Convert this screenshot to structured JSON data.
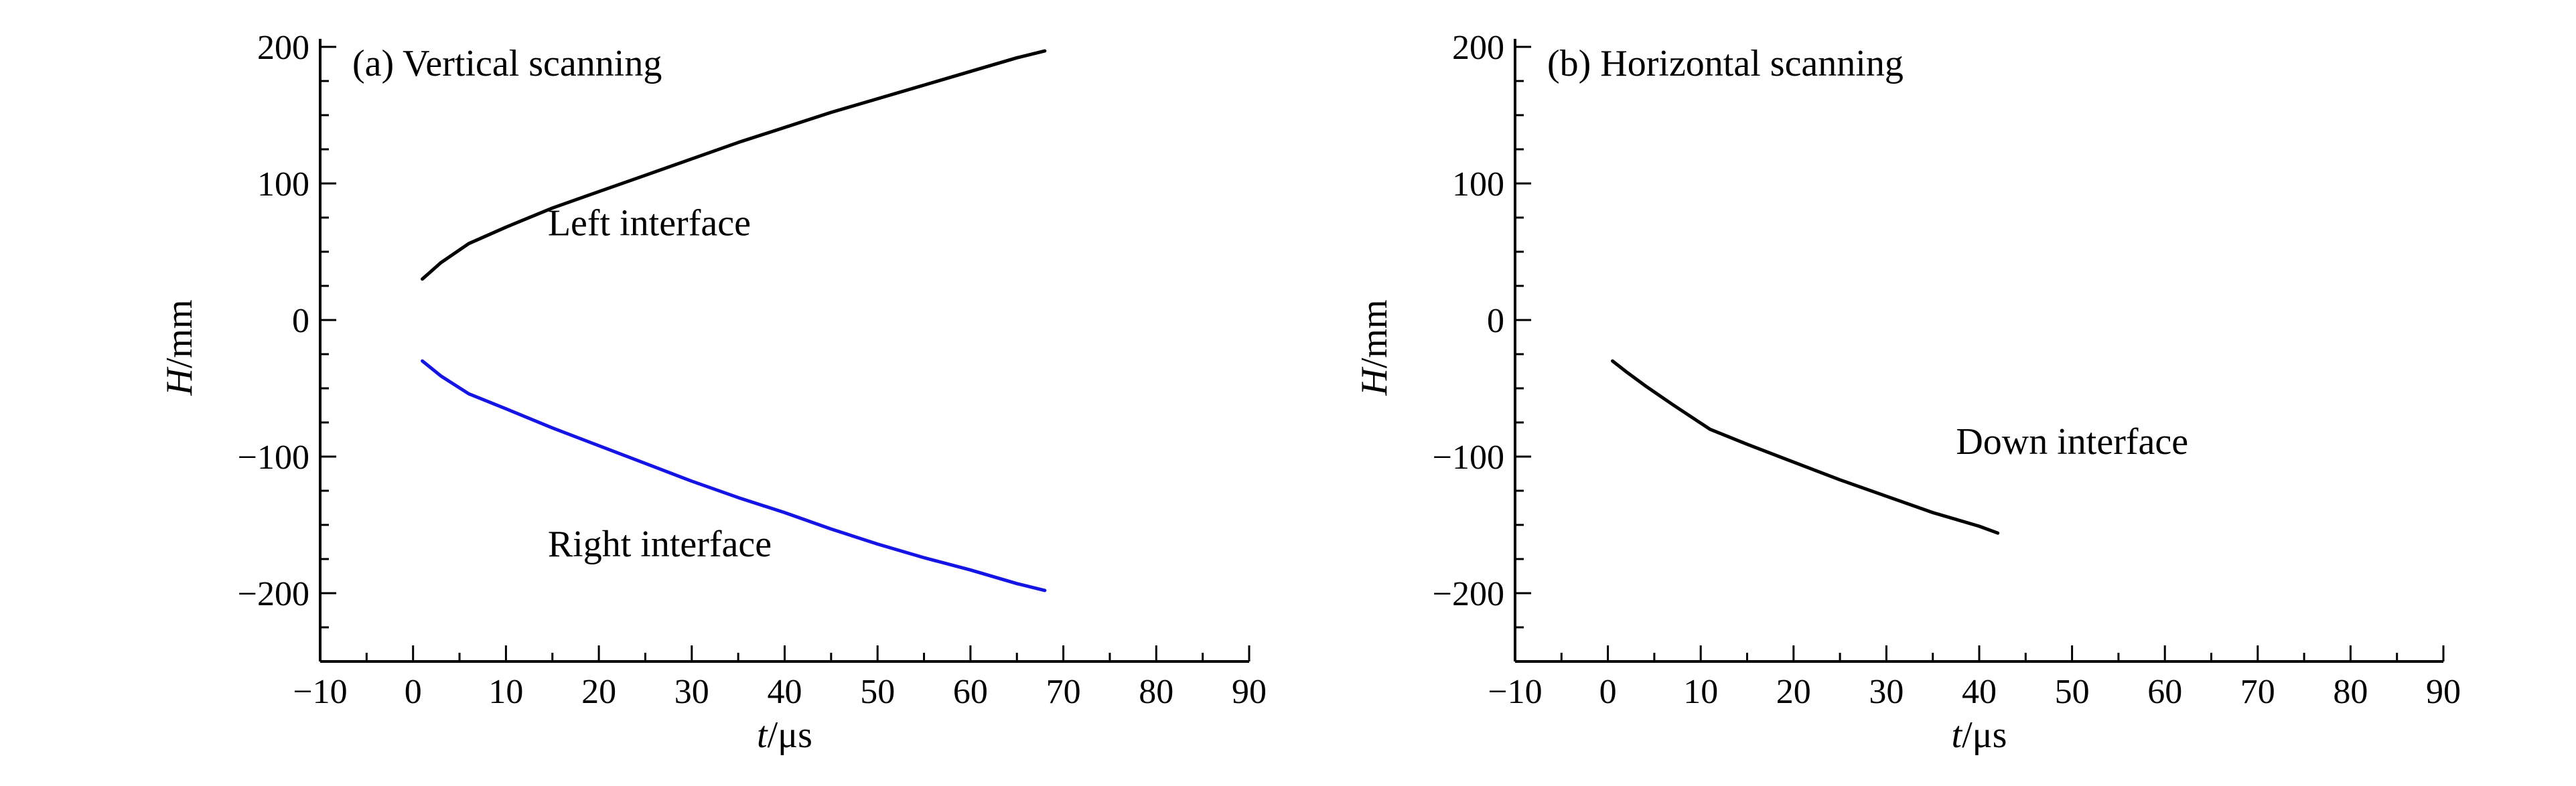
{
  "chart_data": [
    {
      "type": "line",
      "title": "(a) Vertical scanning",
      "xlabel_italic": "t",
      "xlabel_unit": "/μs",
      "ylabel_italic": "H",
      "ylabel_unit": "/mm",
      "xlim": [
        -10,
        90
      ],
      "ylim": [
        -250,
        200
      ],
      "x_ticks": [
        -10,
        0,
        10,
        20,
        30,
        40,
        50,
        60,
        70,
        80,
        90
      ],
      "x_tick_labels": [
        "−10",
        "0",
        "10",
        "20",
        "30",
        "40",
        "50",
        "60",
        "70",
        "80",
        "90"
      ],
      "y_ticks": [
        200,
        100,
        0,
        -100,
        -200
      ],
      "y_tick_labels": [
        "200",
        "100",
        "0",
        "−100",
        "−200"
      ],
      "x_minor_step": 5,
      "y_minor_step": 25,
      "grid": false,
      "series": [
        {
          "color": "#000000",
          "x": [
            1,
            3,
            6,
            10,
            15,
            20,
            25,
            30,
            35,
            40,
            45,
            50,
            55,
            60,
            65,
            68
          ],
          "y": [
            30,
            42,
            56,
            68,
            82,
            94,
            106,
            118,
            130,
            141,
            152,
            162,
            172,
            182,
            192,
            197
          ]
        },
        {
          "color": "#1414e6",
          "x": [
            1,
            3,
            6,
            10,
            15,
            20,
            25,
            30,
            35,
            40,
            45,
            50,
            55,
            60,
            65,
            68
          ],
          "y": [
            -30,
            -41,
            -54,
            -65,
            -79,
            -92,
            -105,
            -118,
            -130,
            -141,
            -153,
            -164,
            -174,
            -183,
            -193,
            -198
          ]
        }
      ],
      "annotations": [
        {
          "text": "Left interface",
          "x": 14.5,
          "y": 62
        },
        {
          "text": "Right interface",
          "x": 14.5,
          "y": -173
        }
      ]
    },
    {
      "type": "line",
      "title": "(b) Horizontal scanning",
      "xlabel_italic": "t",
      "xlabel_unit": "/μs",
      "ylabel_italic": "H",
      "ylabel_unit": "/mm",
      "xlim": [
        -10,
        90
      ],
      "ylim": [
        -250,
        200
      ],
      "x_ticks": [
        -10,
        0,
        10,
        20,
        30,
        40,
        50,
        60,
        70,
        80,
        90
      ],
      "x_tick_labels": [
        "−10",
        "0",
        "10",
        "20",
        "30",
        "40",
        "50",
        "60",
        "70",
        "80",
        "90"
      ],
      "y_ticks": [
        200,
        100,
        0,
        -100,
        -200
      ],
      "y_tick_labels": [
        "200",
        "100",
        "0",
        "−100",
        "−200"
      ],
      "x_minor_step": 5,
      "y_minor_step": 25,
      "grid": false,
      "series": [
        {
          "color": "#000000",
          "x": [
            0.5,
            2,
            4,
            7,
            11,
            15,
            20,
            25,
            30,
            35,
            40,
            42
          ],
          "y": [
            -30,
            -38,
            -48,
            -62,
            -80,
            -91,
            -104,
            -117,
            -129,
            -141,
            -151,
            -156
          ]
        }
      ],
      "annotations": [
        {
          "text": "Down interface",
          "x": 37.5,
          "y": -98
        }
      ]
    }
  ]
}
